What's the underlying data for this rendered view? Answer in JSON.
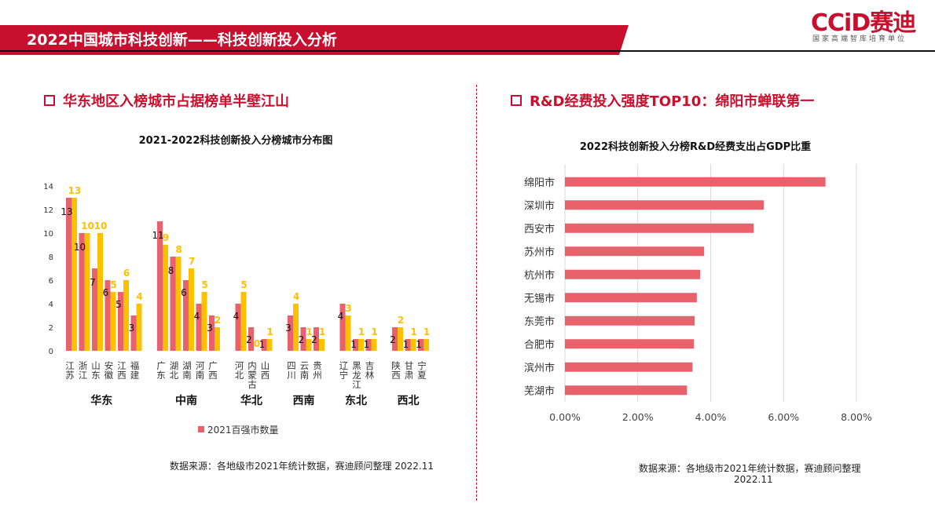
{
  "header": {
    "title": "2022中国城市科技创新——科技创新投入分析"
  },
  "logo": {
    "text": "CCiD赛迪",
    "subtitle": "国家高端智库培育单位"
  },
  "left": {
    "section_title": "华东地区入榜城市占据榜单半壁江山",
    "source": "数据来源：各地级市2021年统计数据，赛迪顾问整理 2022.11"
  },
  "right": {
    "section_title": "R&D经费投入强度TOP10：绵阳市蝉联第一",
    "source_line1": "数据来源：各地级市2021年统计数据，赛迪顾问整理",
    "source_line2": "2022.11"
  },
  "colors": {
    "brand": "#c8102e",
    "bar2021": "#e8616b",
    "bar2022": "#ffc000",
    "rd_bar": "#e8616b"
  },
  "chart_data": [
    {
      "type": "bar",
      "title": "2021-2022科技创新投入分榜城市分布图",
      "categories": [
        "江苏",
        "浙江",
        "山东",
        "安徽",
        "江西",
        "福建",
        "广东",
        "湖北",
        "湖南",
        "河南",
        "广西",
        "河北",
        "内蒙古",
        "山西",
        "四川",
        "云南",
        "贵州",
        "辽宁",
        "黑龙江",
        "吉林",
        "陕西",
        "甘肃",
        "宁夏"
      ],
      "groups": [
        {
          "name": "华东",
          "count": 6
        },
        {
          "name": "中南",
          "count": 5
        },
        {
          "name": "华北",
          "count": 3
        },
        {
          "name": "西南",
          "count": 3
        },
        {
          "name": "东北",
          "count": 3
        },
        {
          "name": "西北",
          "count": 3
        }
      ],
      "series": [
        {
          "name": "2021百强市数量",
          "values": [
            13,
            10,
            7,
            6,
            5,
            3,
            11,
            8,
            6,
            4,
            3,
            4,
            2,
            1,
            3,
            2,
            2,
            4,
            1,
            1,
            2,
            1,
            1
          ]
        },
        {
          "values": [
            13,
            10,
            10,
            5,
            6,
            4,
            9,
            8,
            7,
            5,
            2,
            5,
            0,
            1,
            4,
            1,
            1,
            3,
            1,
            1,
            2,
            1,
            1
          ]
        }
      ],
      "ylim": [
        0,
        14
      ],
      "yticks": [
        0,
        2,
        4,
        6,
        8,
        10,
        12,
        14
      ],
      "legend": "bottom"
    },
    {
      "type": "bar",
      "orientation": "horizontal",
      "title": "2022科技创新投入分榜R&D经费支出占GDP比重",
      "categories": [
        "绵阳市",
        "深圳市",
        "西安市",
        "苏州市",
        "杭州市",
        "无锡市",
        "东莞市",
        "合肥市",
        "滨州市",
        "芜湖市"
      ],
      "values": [
        7.15,
        5.46,
        5.18,
        3.82,
        3.71,
        3.62,
        3.56,
        3.54,
        3.5,
        3.35
      ],
      "xlim": [
        0,
        8
      ],
      "xticks": [
        "0.00%",
        "2.00%",
        "4.00%",
        "6.00%",
        "8.00%"
      ],
      "grid": true
    }
  ]
}
